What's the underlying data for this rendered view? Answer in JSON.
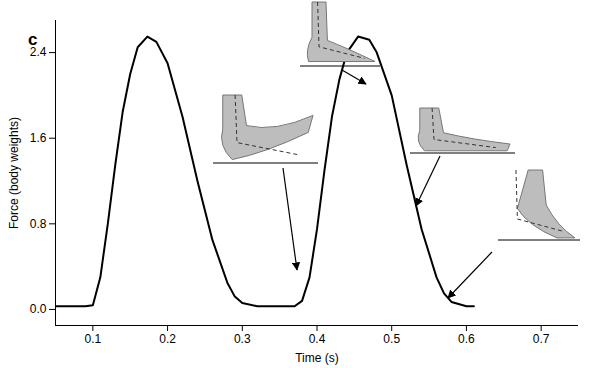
{
  "chart_data": {
    "type": "line",
    "title": "c",
    "x_label": "Time (s)",
    "y_label": "Force (body weights)",
    "x": [
      0.05,
      0.09,
      0.1,
      0.11,
      0.12,
      0.13,
      0.14,
      0.15,
      0.16,
      0.173,
      0.185,
      0.2,
      0.22,
      0.24,
      0.26,
      0.28,
      0.29,
      0.3,
      0.32,
      0.37,
      0.38,
      0.39,
      0.4,
      0.41,
      0.42,
      0.43,
      0.44,
      0.455,
      0.47,
      0.48,
      0.5,
      0.52,
      0.54,
      0.56,
      0.57,
      0.58,
      0.6,
      0.61
    ],
    "values": [
      0.03,
      0.03,
      0.04,
      0.3,
      0.8,
      1.35,
      1.85,
      2.2,
      2.45,
      2.55,
      2.5,
      2.3,
      1.8,
      1.2,
      0.65,
      0.25,
      0.12,
      0.06,
      0.03,
      0.03,
      0.08,
      0.3,
      0.75,
      1.3,
      1.8,
      2.15,
      2.4,
      2.55,
      2.52,
      2.4,
      2.0,
      1.35,
      0.75,
      0.3,
      0.15,
      0.07,
      0.03,
      0.03
    ],
    "color": "#000000",
    "xlim": [
      0.05,
      0.75
    ],
    "xticks": [
      0.1,
      0.2,
      0.3,
      0.4,
      0.5,
      0.6,
      0.7
    ],
    "ylim": [
      -0.15,
      2.7
    ],
    "yticks": [
      {
        "value": 0,
        "label": "0.0"
      },
      0.8,
      1.6,
      2.4
    ],
    "grid": false
  }
}
